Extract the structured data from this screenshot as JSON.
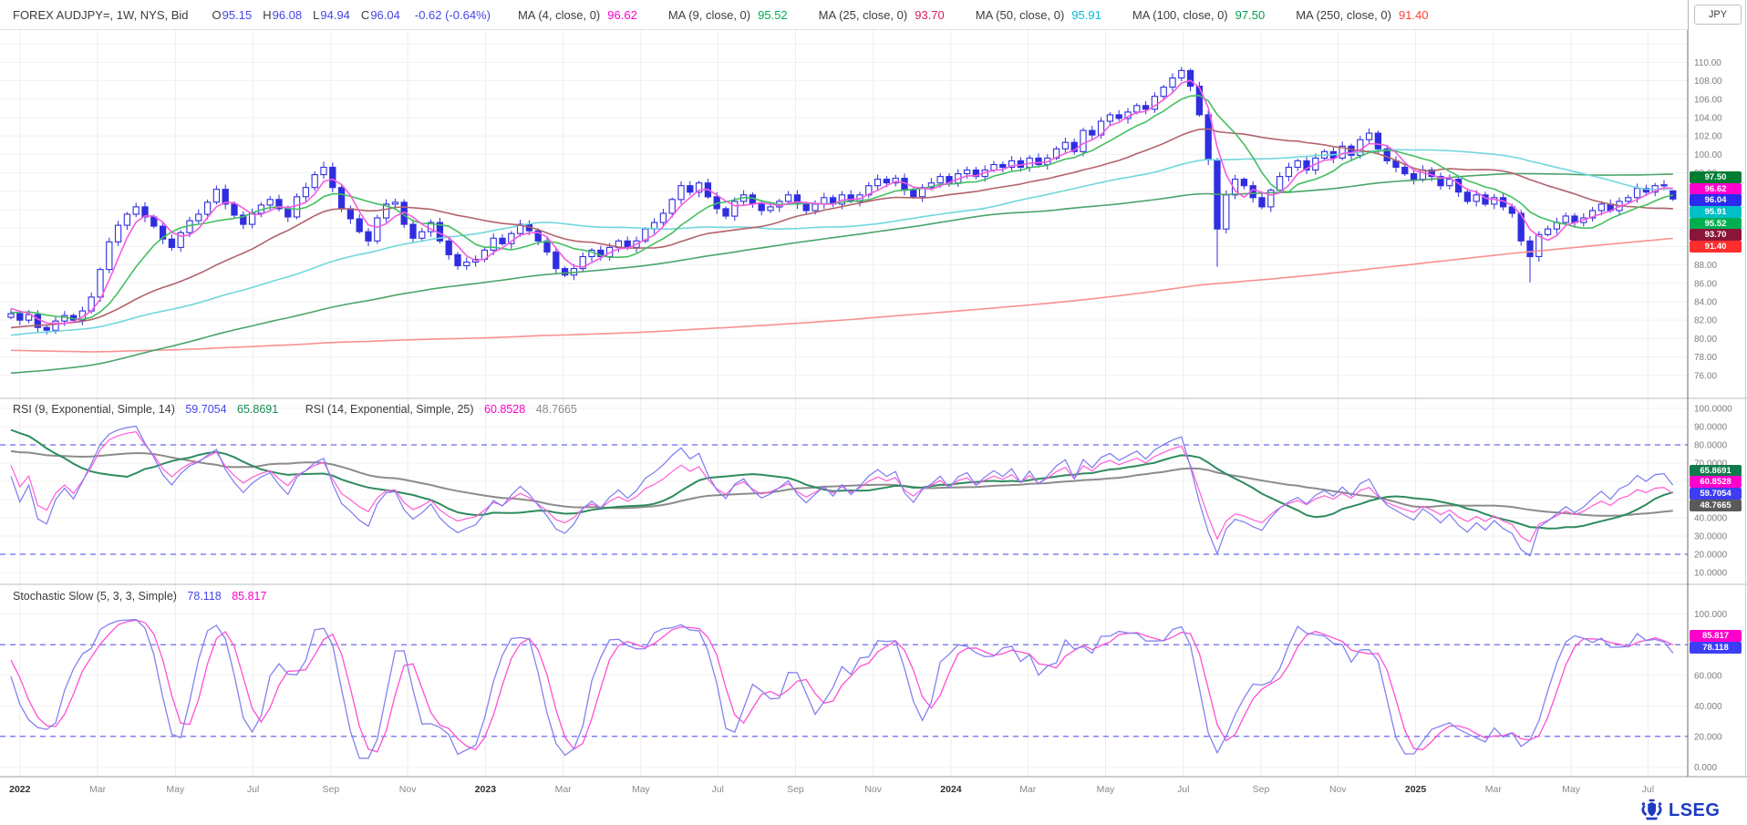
{
  "header": {
    "title": "FOREX AUDJPY=, 1W, NYS, Bid",
    "ohlc": [
      {
        "k": "O",
        "v": "95.15"
      },
      {
        "k": "H",
        "v": "96.08"
      },
      {
        "k": "L",
        "v": "94.94"
      },
      {
        "k": "C",
        "v": "96.04"
      }
    ],
    "ohlc_value_color": "#4646e8",
    "change": "-0.62 (-0.64%)",
    "change_color": "#4646e8",
    "mas": [
      {
        "label": "MA (4, close, 0)",
        "value": "96.62",
        "color": "#ff00cc"
      },
      {
        "label": "MA (9, close, 0)",
        "value": "95.52",
        "color": "#00a94f"
      },
      {
        "label": "MA (25, close, 0)",
        "value": "93.70",
        "color": "#d81b60"
      },
      {
        "label": "MA (50, close, 0)",
        "value": "95.91",
        "color": "#00bcd4"
      },
      {
        "label": "MA (100, close, 0)",
        "value": "97.50",
        "color": "#089e4e"
      },
      {
        "label": "MA (250, close, 0)",
        "value": "91.40",
        "color": "#ff4136"
      }
    ]
  },
  "axis": {
    "currency_label": "JPY"
  },
  "rsi_legend": {
    "label1": "RSI (9, Exponential, Simple, 14)",
    "value1": "59.7054",
    "value1_color": "#4646e8",
    "signal1": "65.8691",
    "signal1_color": "#128a52",
    "label2": "RSI (14, Exponential, Simple, 25)",
    "value2": "60.8528",
    "value2_color": "#ff00cc",
    "signal2": "48.7665",
    "signal2_color": "#8c8c8c"
  },
  "stoch_legend": {
    "label": "Stochastic Slow (5, 3, 3, Simple)",
    "k": "78.118",
    "k_color": "#4646e8",
    "d": "85.817",
    "d_color": "#ff00cc"
  },
  "footer": {
    "logo_text": "LSEG"
  },
  "colors": {
    "candle": "#2e2ee0",
    "ma4": "#f55ce0",
    "ma9": "#44bf60",
    "ma25": "#b2636c",
    "ma50": "#72d7dc",
    "ma100": "#4ba56a",
    "ma250": "#f99090",
    "rsi9": "#7b7bf2",
    "rsi9_signal": "#2e8b5e",
    "rsi14": "#ff5cd6",
    "rsi14_signal": "#8c8c8c",
    "stoch_k": "#8282f0",
    "stoch_d": "#ff4fd3",
    "threshold": "#6a6af0",
    "grid": "#f1f1f1",
    "vgrid": "#ededed",
    "axis_text": "#7d7d7d",
    "year_text": "#2e2e2e",
    "month_text": "#8a8a8a"
  },
  "chart_data": {
    "type": "candlestick",
    "symbol": "AUDJPY=",
    "interval": "1W",
    "venue": "NYS",
    "side": "Bid",
    "last_ohlc": {
      "open": 95.15,
      "high": 96.08,
      "low": 94.94,
      "close": 96.04
    },
    "change": -0.62,
    "change_pct": -0.64,
    "x_tick_labels": [
      "2022",
      "Mar",
      "May",
      "Jul",
      "Sep",
      "Nov",
      "2023",
      "Mar",
      "May",
      "Jul",
      "Sep",
      "Nov",
      "2024",
      "Mar",
      "May",
      "Jul",
      "Sep",
      "Nov",
      "2025",
      "Mar",
      "May",
      "Jul"
    ],
    "x_ticks": [
      {
        "label": "2022",
        "week": 1,
        "year": true
      },
      {
        "label": "Mar",
        "week": 9.7
      },
      {
        "label": "May",
        "week": 18.4
      },
      {
        "label": "Jul",
        "week": 27.1
      },
      {
        "label": "Sep",
        "week": 35.8
      },
      {
        "label": "Nov",
        "week": 44.4
      },
      {
        "label": "2023",
        "week": 53.1,
        "year": true
      },
      {
        "label": "Mar",
        "week": 61.8
      },
      {
        "label": "May",
        "week": 70.5
      },
      {
        "label": "Jul",
        "week": 79.1
      },
      {
        "label": "Sep",
        "week": 87.8
      },
      {
        "label": "Nov",
        "week": 96.5
      },
      {
        "label": "2024",
        "week": 105.2,
        "year": true
      },
      {
        "label": "Mar",
        "week": 113.8
      },
      {
        "label": "May",
        "week": 122.5
      },
      {
        "label": "Jul",
        "week": 131.2
      },
      {
        "label": "Sep",
        "week": 139.9
      },
      {
        "label": "Nov",
        "week": 148.5
      },
      {
        "label": "2025",
        "week": 157.2,
        "year": true
      },
      {
        "label": "Mar",
        "week": 165.9
      },
      {
        "label": "May",
        "week": 174.6
      },
      {
        "label": "Jul",
        "week": 183.2
      }
    ],
    "main_axis": {
      "min": 76,
      "max": 110,
      "step": 2,
      "decimals": 2
    },
    "weekly_closes": [
      82.7,
      82.0,
      82.6,
      81.2,
      80.9,
      81.9,
      82.5,
      82.0,
      83.0,
      84.5,
      87.5,
      90.5,
      92.3,
      93.5,
      94.3,
      93.2,
      92.2,
      90.8,
      89.9,
      91.5,
      92.8,
      93.5,
      94.8,
      96.2,
      94.6,
      93.4,
      92.4,
      93.6,
      94.5,
      95.1,
      94.1,
      93.2,
      95.4,
      96.4,
      97.8,
      98.6,
      96.4,
      94.1,
      93.0,
      91.6,
      90.6,
      93.1,
      94.6,
      94.8,
      92.4,
      90.9,
      91.6,
      92.6,
      90.6,
      89.1,
      87.9,
      88.3,
      88.6,
      89.6,
      90.9,
      90.3,
      91.4,
      92.4,
      91.7,
      90.6,
      89.4,
      87.6,
      86.9,
      87.6,
      88.9,
      89.6,
      88.9,
      89.9,
      90.6,
      89.9,
      90.6,
      91.9,
      92.6,
      93.6,
      95.1,
      96.6,
      95.9,
      96.9,
      95.4,
      94.1,
      93.3,
      94.9,
      95.6,
      94.6,
      93.9,
      94.3,
      94.9,
      95.6,
      94.6,
      93.9,
      94.6,
      95.3,
      94.6,
      95.6,
      94.9,
      95.6,
      96.6,
      97.3,
      96.9,
      97.4,
      96.1,
      95.4,
      96.4,
      96.9,
      97.6,
      96.9,
      97.9,
      98.3,
      97.6,
      98.3,
      98.9,
      98.6,
      99.3,
      98.6,
      99.6,
      98.9,
      99.6,
      100.6,
      101.3,
      100.3,
      102.6,
      102.1,
      103.6,
      104.3,
      103.9,
      104.6,
      105.3,
      104.9,
      106.3,
      107.3,
      108.3,
      109.1,
      107.4,
      104.3,
      99.4,
      91.9,
      95.6,
      97.3,
      96.6,
      95.3,
      94.3,
      96.1,
      97.6,
      98.6,
      99.3,
      98.3,
      99.6,
      100.3,
      99.6,
      100.9,
      99.9,
      101.6,
      102.3,
      100.6,
      99.3,
      98.6,
      97.9,
      97.3,
      98.3,
      97.6,
      96.6,
      97.3,
      95.9,
      94.9,
      95.6,
      94.6,
      95.3,
      94.3,
      93.6,
      90.6,
      88.9,
      91.3,
      91.9,
      92.6,
      93.3,
      92.6,
      93.1,
      93.9,
      94.6,
      93.9,
      94.9,
      95.3,
      96.3,
      95.9,
      96.6,
      96.7,
      96.04
    ],
    "candle_overrides": {
      "35": {
        "high": 99.2
      },
      "131": {
        "high": 109.5
      },
      "135": {
        "low": 87.8
      },
      "170": {
        "low": 86.1
      },
      "186": {
        "open": 95.15,
        "high": 96.08,
        "low": 94.94,
        "close": 96.04
      }
    },
    "moving_averages": [
      {
        "period": 4,
        "current": 96.62
      },
      {
        "period": 9,
        "current": 95.52
      },
      {
        "period": 25,
        "current": 93.7
      },
      {
        "period": 50,
        "current": 95.91
      },
      {
        "period": 100,
        "current": 97.5
      },
      {
        "period": 250,
        "current": 91.4
      }
    ],
    "main_badges": [
      {
        "text": "97.50",
        "value": 97.5,
        "bg": "#007d33"
      },
      {
        "text": "96.62",
        "value": 96.62,
        "bg": "#ff00cc"
      },
      {
        "text": "96.04",
        "value": 96.04,
        "bg": "#2b2bf0"
      },
      {
        "text": "95.91",
        "value": 95.91,
        "bg": "#00bfc8"
      },
      {
        "text": "95.52",
        "value": 95.52,
        "bg": "#00b050"
      },
      {
        "text": "93.70",
        "value": 93.7,
        "bg": "#8b1538"
      },
      {
        "text": "91.40",
        "value": 91.4,
        "bg": "#ff2e2e"
      }
    ],
    "rsi_panel": {
      "axis": {
        "min": 10,
        "max": 100,
        "step": 10,
        "decimals": 4
      },
      "thresholds": [
        80,
        20
      ],
      "series": [
        {
          "name": "RSI 9",
          "current": 59.7054
        },
        {
          "name": "RSI 9 signal 14",
          "current": 65.8691
        },
        {
          "name": "RSI 14",
          "current": 60.8528
        },
        {
          "name": "RSI 14 signal 25",
          "current": 48.7665
        }
      ],
      "badges": [
        {
          "text": "65.8691",
          "value": 65.8691,
          "bg": "#117a4a"
        },
        {
          "text": "60.8528",
          "value": 60.8528,
          "bg": "#ff00cc"
        },
        {
          "text": "59.7054",
          "value": 59.7054,
          "bg": "#3d3df5"
        },
        {
          "text": "48.7665",
          "value": 48.7665,
          "bg": "#5a5a5a"
        }
      ]
    },
    "stoch_panel": {
      "axis": {
        "min": 0,
        "max": 100,
        "step": 20,
        "decimals": 3
      },
      "thresholds": [
        80,
        20
      ],
      "series": [
        {
          "name": "%K slow",
          "current": 78.118
        },
        {
          "name": "%D slow",
          "current": 85.817
        }
      ],
      "badges": [
        {
          "text": "85.817",
          "value": 85.817,
          "bg": "#ff00cc"
        },
        {
          "text": "78.118",
          "value": 78.118,
          "bg": "#3d3df5"
        }
      ]
    }
  }
}
